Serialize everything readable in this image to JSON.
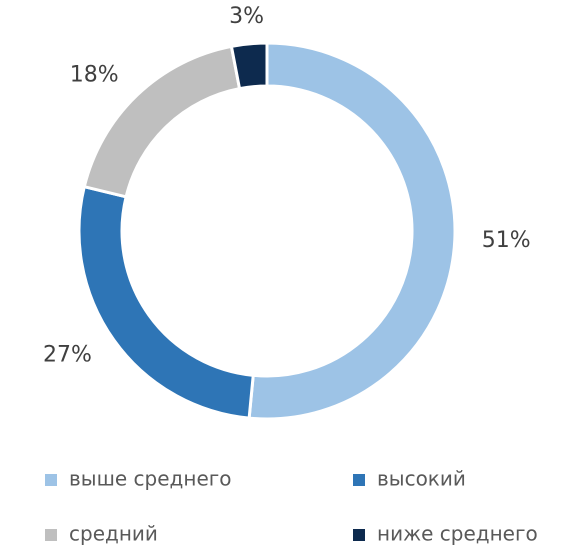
{
  "chart_data": {
    "type": "donut",
    "categories": [
      "выше среднего",
      "высокий",
      "средний",
      "ниже среднего"
    ],
    "values": [
      51,
      27,
      18,
      3
    ],
    "value_labels": [
      "51%",
      "27%",
      "18%",
      "3%"
    ],
    "colors": [
      "#9dc3e6",
      "#2e75b6",
      "#bfbfbf",
      "#0d2a4e"
    ],
    "legend": "bottom"
  }
}
